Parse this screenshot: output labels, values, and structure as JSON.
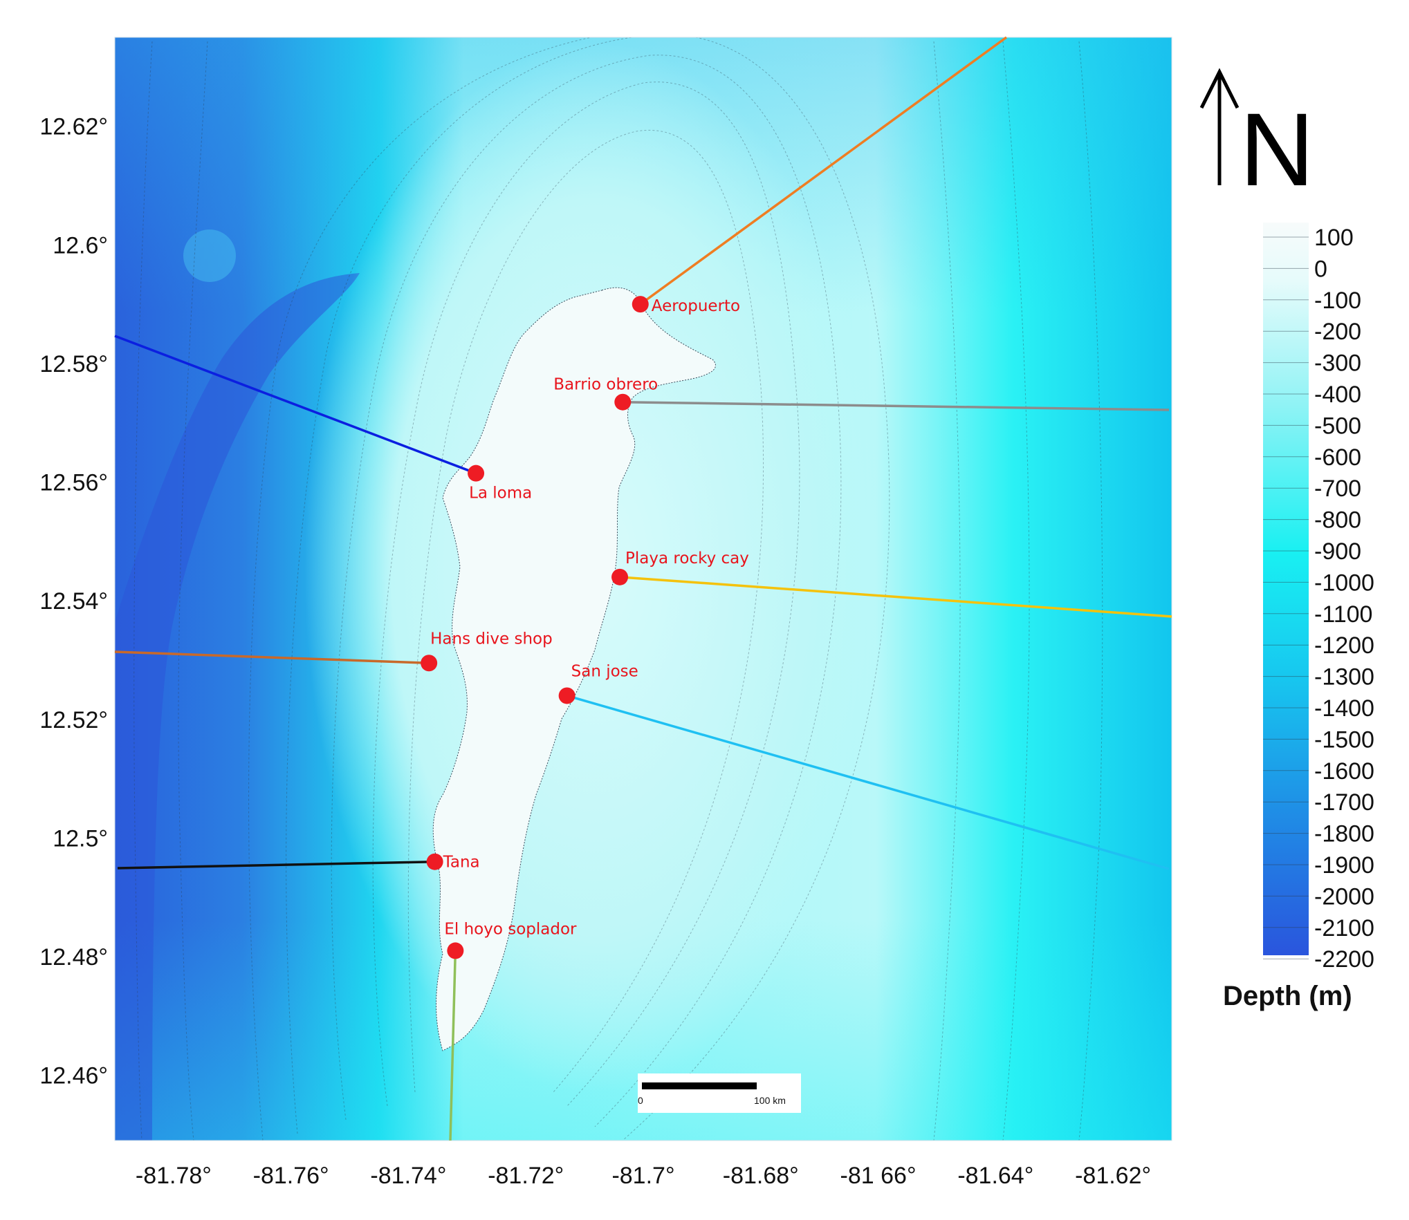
{
  "map": {
    "lon_range": [
      -81.79,
      -81.61
    ],
    "lat_range": [
      12.449,
      12.635
    ],
    "lat_ticks": [
      {
        "value": 12.62,
        "label": "12.62°"
      },
      {
        "value": 12.6,
        "label": "12.6°"
      },
      {
        "value": 12.58,
        "label": "12.58°"
      },
      {
        "value": 12.56,
        "label": "12.56°"
      },
      {
        "value": 12.54,
        "label": "12.54°"
      },
      {
        "value": 12.52,
        "label": "12.52°"
      },
      {
        "value": 12.5,
        "label": "12.5°"
      },
      {
        "value": 12.48,
        "label": "12.48°"
      },
      {
        "value": 12.46,
        "label": "12.46°"
      }
    ],
    "lon_ticks": [
      {
        "value": -81.78,
        "label": "-81.78°"
      },
      {
        "value": -81.76,
        "label": "-81.76°"
      },
      {
        "value": -81.74,
        "label": "-81.74°"
      },
      {
        "value": -81.72,
        "label": "-81.72°"
      },
      {
        "value": -81.7,
        "label": "-81.7°"
      },
      {
        "value": -81.68,
        "label": "-81.68°"
      },
      {
        "value": -81.66,
        "label": "-81 66°"
      },
      {
        "value": -81.64,
        "label": "-81.64°"
      },
      {
        "value": -81.62,
        "label": "-81.62°"
      }
    ],
    "label_color": "#e8141c",
    "marker_color": "#ee1c24",
    "sites": [
      {
        "name": "Aeropuerto",
        "lon": -81.7005,
        "lat": 12.59,
        "line_color": "#ef7d22"
      },
      {
        "name": "Barrio obrero",
        "lon": -81.7035,
        "lat": 12.5735,
        "line_color": "#8c8c8c"
      },
      {
        "name": "La loma",
        "lon": -81.7285,
        "lat": 12.5615,
        "line_color": "#0b1fe0"
      },
      {
        "name": "Playa rocky cay",
        "lon": -81.704,
        "lat": 12.544,
        "line_color": "#f4c20d"
      },
      {
        "name": "Hans dive shop",
        "lon": -81.7365,
        "lat": 12.5295,
        "line_color": "#c8692a"
      },
      {
        "name": "San jose",
        "lon": -81.713,
        "lat": 12.524,
        "line_color": "#1fc0f2"
      },
      {
        "name": "Tana",
        "lon": -81.7355,
        "lat": 12.496,
        "line_color": "#111111"
      },
      {
        "name": "El hoyo soplador",
        "lon": -81.732,
        "lat": 12.481,
        "line_color": "#8fc05a"
      }
    ]
  },
  "legend": {
    "title": "Depth (m)",
    "labels": [
      "100",
      "0",
      "-100",
      "-200",
      "-300",
      "-400",
      "-500",
      "-600",
      "-700",
      "-800",
      "-900",
      "-1000",
      "-1100",
      "-1200",
      "-1300",
      "-1400",
      "-1500",
      "-1600",
      "-1700",
      "-1800",
      "-1900",
      "-2000",
      "-2100",
      "-2200"
    ],
    "top_color": "#f7fbfb",
    "mid_color": "#19f0f2",
    "bottom_color": "#2a55dd"
  },
  "north_arrow": {
    "label": "N"
  },
  "scale_bar": {
    "start_label": "0",
    "end_label": "100 km"
  }
}
